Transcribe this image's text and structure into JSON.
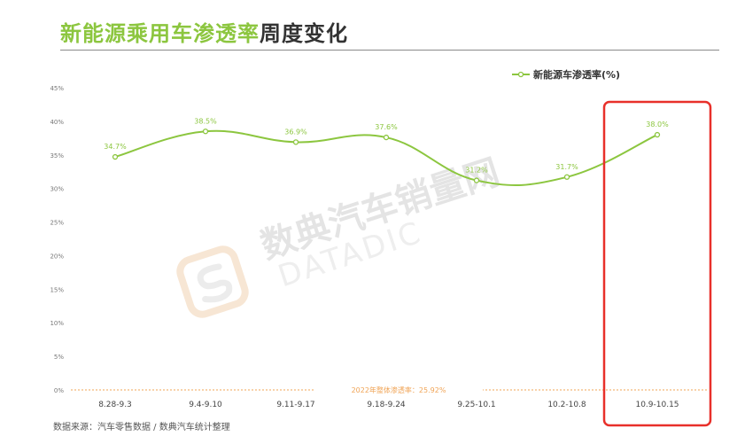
{
  "header": {
    "title_green": "新能源乘用车渗透率",
    "title_dark": "周度变化"
  },
  "footer": {
    "source": "数据来源：汽车零售数据 / 数典汽车统计整理"
  },
  "watermark": {
    "text_cn": "数典汽车销量网",
    "text_en": "DATADIC"
  },
  "colors": {
    "line": "#8cc63f",
    "reference": "#f0a456",
    "highlight": "#e8302a",
    "axis_text": "#777777"
  },
  "chart_data": {
    "type": "line",
    "title": "",
    "xlabel": "",
    "ylabel": "",
    "categories": [
      "8.28-9.3",
      "9.4-9.10",
      "9.11-9.17",
      "9.18-9.24",
      "9.25-10.1",
      "10.2-10.8",
      "10.9-10.15"
    ],
    "series": [
      {
        "name": "新能源车渗透率(%)",
        "values": [
          34.7,
          38.5,
          36.9,
          37.6,
          31.2,
          31.7,
          38.0
        ],
        "labels": [
          "34.7%",
          "38.5%",
          "36.9%",
          "37.6%",
          "31.2%",
          "31.7%",
          "38.0%"
        ]
      }
    ],
    "ylim": [
      0,
      45
    ],
    "yticks": [
      0,
      5,
      10,
      15,
      20,
      25,
      30,
      35,
      40,
      45
    ],
    "ytick_labels": [
      "0%",
      "5%",
      "10%",
      "15%",
      "20%",
      "25%",
      "30%",
      "35%",
      "40%",
      "45%"
    ],
    "grid": false,
    "legend": "top-right",
    "reference_line": {
      "value": 25.92,
      "label": "2022年整体渗透率：25.92%"
    },
    "highlight_category": "10.9-10.15"
  }
}
